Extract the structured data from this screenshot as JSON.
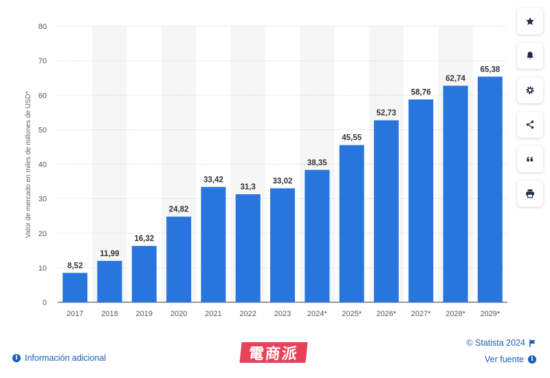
{
  "chart_data": {
    "type": "bar",
    "categories": [
      "2017",
      "2018",
      "2019",
      "2020",
      "2021",
      "2022",
      "2023",
      "2024*",
      "2025*",
      "2026*",
      "2027*",
      "2028*",
      "2029*"
    ],
    "values": [
      8.52,
      11.99,
      16.32,
      24.82,
      33.42,
      31.3,
      33.02,
      38.35,
      45.55,
      52.73,
      58.76,
      62.74,
      65.38
    ],
    "data_labels": [
      "8,52",
      "11,99",
      "16,32",
      "24,82",
      "33,42",
      "31,3",
      "33,02",
      "38,35",
      "45,55",
      "52,73",
      "58,76",
      "62,74",
      "65,38"
    ],
    "ylabel": "Valor de mercado en miles de millones de USD*",
    "yticks": [
      0,
      10,
      20,
      30,
      40,
      50,
      60,
      70,
      80
    ],
    "ylim": [
      0,
      80
    ],
    "grid": true,
    "bar_color": "#2876dd",
    "band_color": "#f6f6f6"
  },
  "sidebar": {
    "buttons": [
      {
        "name": "favorite-button",
        "icon": "star-icon"
      },
      {
        "name": "notification-button",
        "icon": "bell-icon"
      },
      {
        "name": "settings-button",
        "icon": "gear-icon"
      },
      {
        "name": "share-button",
        "icon": "share-icon"
      },
      {
        "name": "cite-button",
        "icon": "quote-icon"
      },
      {
        "name": "print-button",
        "icon": "printer-icon"
      }
    ]
  },
  "footer": {
    "info_label": "Información adicional",
    "copyright": "© Statista 2024",
    "source_label": "Ver fuente"
  },
  "watermark": "電商派"
}
